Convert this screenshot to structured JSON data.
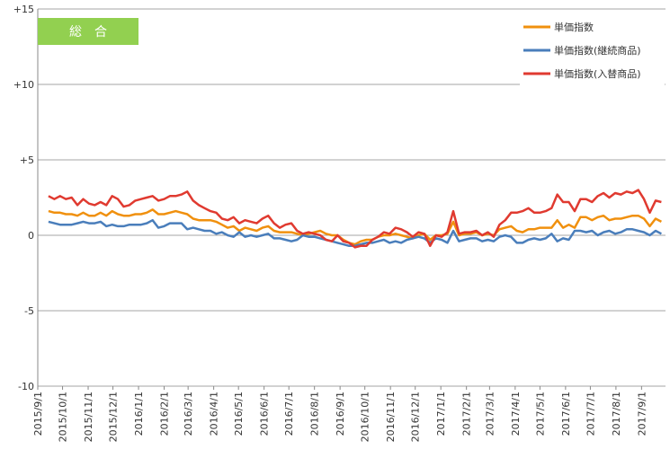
{
  "chart_data": {
    "type": "line",
    "title": "総　合",
    "x": [
      "2015/9/14",
      "2015/9/21",
      "2015/9/28",
      "2015/10/5",
      "2015/10/12",
      "2015/10/19",
      "2015/10/26",
      "2015/11/2",
      "2015/11/9",
      "2015/11/16",
      "2015/11/23",
      "2015/11/30",
      "2015/12/7",
      "2015/12/14",
      "2015/12/21",
      "2015/12/28",
      "2016/1/4",
      "2016/1/11",
      "2016/1/18",
      "2016/1/25",
      "2016/2/1",
      "2016/2/8",
      "2016/2/15",
      "2016/2/22",
      "2016/2/29",
      "2016/3/7",
      "2016/3/14",
      "2016/3/21",
      "2016/3/28",
      "2016/4/4",
      "2016/4/11",
      "2016/4/18",
      "2016/4/25",
      "2016/5/2",
      "2016/5/9",
      "2016/5/16",
      "2016/5/23",
      "2016/5/30",
      "2016/6/6",
      "2016/6/13",
      "2016/6/20",
      "2016/6/27",
      "2016/7/4",
      "2016/7/11",
      "2016/7/18",
      "2016/7/25",
      "2016/8/1",
      "2016/8/8",
      "2016/8/15",
      "2016/8/22",
      "2016/8/29",
      "2016/9/5",
      "2016/9/12",
      "2016/9/19",
      "2016/9/26",
      "2016/10/3",
      "2016/10/10",
      "2016/10/17",
      "2016/10/24",
      "2016/10/31",
      "2016/11/7",
      "2016/11/14",
      "2016/11/21",
      "2016/11/28",
      "2016/12/5",
      "2016/12/12",
      "2016/12/19",
      "2016/12/26",
      "2017/1/2",
      "2017/1/9",
      "2017/1/16",
      "2017/1/23",
      "2017/1/30",
      "2017/2/6",
      "2017/2/13",
      "2017/2/20",
      "2017/2/27",
      "2017/3/6",
      "2017/3/13",
      "2017/3/20",
      "2017/3/27",
      "2017/4/3",
      "2017/4/10",
      "2017/4/17",
      "2017/4/24",
      "2017/5/1",
      "2017/5/8",
      "2017/5/15",
      "2017/5/22",
      "2017/5/29",
      "2017/6/5",
      "2017/6/12",
      "2017/6/19",
      "2017/6/26",
      "2017/7/3",
      "2017/7/10",
      "2017/7/17",
      "2017/7/24",
      "2017/7/31",
      "2017/8/7",
      "2017/8/14",
      "2017/8/21",
      "2017/8/28",
      "2017/9/4",
      "2017/9/11",
      "2017/9/18",
      "2017/9/25"
    ],
    "series": [
      {
        "name": "単価指数",
        "color": "#f0900e",
        "values": [
          1.6,
          1.5,
          1.5,
          1.4,
          1.4,
          1.3,
          1.5,
          1.3,
          1.3,
          1.5,
          1.3,
          1.6,
          1.4,
          1.3,
          1.3,
          1.4,
          1.4,
          1.5,
          1.7,
          1.4,
          1.4,
          1.5,
          1.6,
          1.5,
          1.4,
          1.1,
          1.0,
          1.0,
          1.0,
          0.9,
          0.7,
          0.5,
          0.6,
          0.3,
          0.5,
          0.4,
          0.3,
          0.5,
          0.6,
          0.3,
          0.2,
          0.2,
          0.2,
          0.1,
          0.0,
          0.1,
          0.2,
          0.3,
          0.1,
          0.0,
          0.0,
          -0.3,
          -0.5,
          -0.6,
          -0.4,
          -0.3,
          -0.3,
          -0.1,
          0.0,
          0.0,
          0.1,
          0.0,
          -0.1,
          -0.2,
          0.0,
          0.1,
          -0.3,
          0.0,
          0.0,
          0.1,
          0.9,
          0.0,
          0.1,
          0.1,
          0.2,
          0.0,
          0.1,
          0.0,
          0.4,
          0.5,
          0.6,
          0.3,
          0.2,
          0.4,
          0.4,
          0.5,
          0.5,
          0.5,
          1.0,
          0.5,
          0.7,
          0.5,
          1.2,
          1.2,
          1.0,
          1.2,
          1.3,
          1.0,
          1.1,
          1.1,
          1.2,
          1.3,
          1.3,
          1.1,
          0.6,
          1.1,
          0.9
        ]
      },
      {
        "name": "単価指数(継続商品)",
        "color": "#4a7ebb",
        "values": [
          0.9,
          0.8,
          0.7,
          0.7,
          0.7,
          0.8,
          0.9,
          0.8,
          0.8,
          0.9,
          0.6,
          0.7,
          0.6,
          0.6,
          0.7,
          0.7,
          0.7,
          0.8,
          1.0,
          0.5,
          0.6,
          0.8,
          0.8,
          0.8,
          0.4,
          0.5,
          0.4,
          0.3,
          0.3,
          0.1,
          0.2,
          0.0,
          -0.1,
          0.2,
          -0.1,
          0.0,
          -0.1,
          0.0,
          0.1,
          -0.2,
          -0.2,
          -0.3,
          -0.4,
          -0.3,
          0.0,
          -0.1,
          -0.1,
          -0.2,
          -0.3,
          -0.4,
          -0.5,
          -0.6,
          -0.7,
          -0.7,
          -0.6,
          -0.5,
          -0.5,
          -0.4,
          -0.3,
          -0.5,
          -0.4,
          -0.5,
          -0.3,
          -0.2,
          -0.1,
          -0.2,
          -0.5,
          -0.2,
          -0.3,
          -0.5,
          0.3,
          -0.4,
          -0.3,
          -0.2,
          -0.2,
          -0.4,
          -0.3,
          -0.4,
          -0.1,
          0.0,
          -0.1,
          -0.5,
          -0.5,
          -0.3,
          -0.2,
          -0.3,
          -0.2,
          0.1,
          -0.4,
          -0.2,
          -0.3,
          0.3,
          0.3,
          0.2,
          0.3,
          0.0,
          0.2,
          0.3,
          0.1,
          0.2,
          0.4,
          0.4,
          0.3,
          0.2,
          0.0,
          0.3,
          0.1
        ]
      },
      {
        "name": "単価指数(入替商品)",
        "color": "#e03a30",
        "values": [
          2.6,
          2.4,
          2.6,
          2.4,
          2.5,
          2.0,
          2.4,
          2.1,
          2.0,
          2.2,
          2.0,
          2.6,
          2.4,
          1.9,
          2.0,
          2.3,
          2.4,
          2.5,
          2.6,
          2.3,
          2.4,
          2.6,
          2.6,
          2.7,
          2.9,
          2.3,
          2.0,
          1.8,
          1.6,
          1.5,
          1.1,
          1.0,
          1.2,
          0.8,
          1.0,
          0.9,
          0.8,
          1.1,
          1.3,
          0.8,
          0.5,
          0.7,
          0.8,
          0.3,
          0.1,
          0.2,
          0.1,
          0.0,
          -0.3,
          -0.4,
          0.0,
          -0.4,
          -0.5,
          -0.8,
          -0.7,
          -0.7,
          -0.3,
          -0.1,
          0.2,
          0.1,
          0.5,
          0.4,
          0.2,
          -0.1,
          0.2,
          0.1,
          -0.7,
          0.0,
          -0.1,
          0.2,
          1.6,
          0.1,
          0.2,
          0.2,
          0.3,
          0.0,
          0.2,
          -0.1,
          0.7,
          1.0,
          1.5,
          1.5,
          1.6,
          1.8,
          1.5,
          1.5,
          1.6,
          1.8,
          2.7,
          2.2,
          2.2,
          1.6,
          2.4,
          2.4,
          2.2,
          2.6,
          2.8,
          2.5,
          2.8,
          2.7,
          2.9,
          2.8,
          3.0,
          2.4,
          1.5,
          2.3,
          2.2
        ]
      }
    ],
    "xlim": [
      "2015/9/1",
      "2017/9/30"
    ],
    "xticks": [
      "2015/9/1",
      "2015/10/1",
      "2015/11/1",
      "2015/12/1",
      "2016/1/1",
      "2016/2/1",
      "2016/3/1",
      "2016/4/1",
      "2016/5/1",
      "2016/6/1",
      "2016/7/1",
      "2016/8/1",
      "2016/9/1",
      "2016/10/1",
      "2016/11/1",
      "2016/12/1",
      "2017/1/1",
      "2017/2/1",
      "2017/3/1",
      "2017/4/1",
      "2017/5/1",
      "2017/6/1",
      "2017/7/1",
      "2017/8/1",
      "2017/9/1"
    ],
    "ylim": [
      -10,
      15
    ],
    "yticks": [
      {
        "value": 15,
        "label": "+15"
      },
      {
        "value": 10,
        "label": "+10"
      },
      {
        "value": 5,
        "label": "+5"
      },
      0,
      -5,
      -10
    ],
    "grid": true,
    "legend": "upper right",
    "title_color": "#92d050"
  }
}
